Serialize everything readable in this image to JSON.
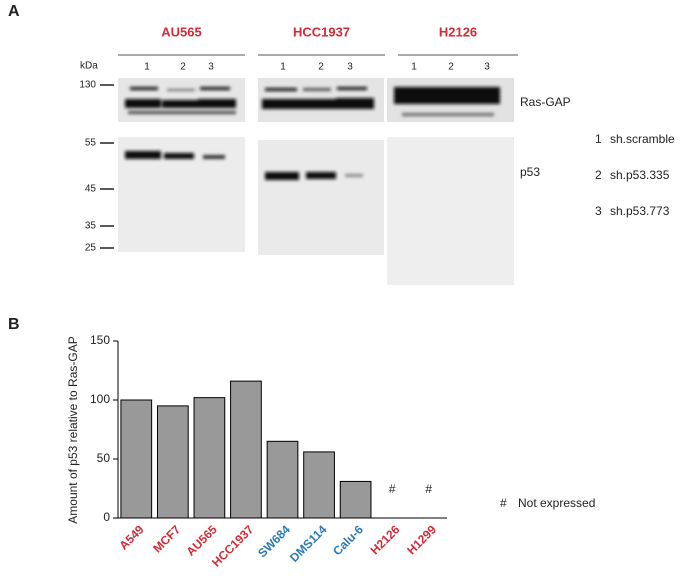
{
  "panel_a": {
    "label": "A",
    "kda": "kDa",
    "group_color": "#d62a35",
    "groups": [
      {
        "name": "AU565",
        "lanes": [
          "1",
          "2",
          "3"
        ]
      },
      {
        "name": "HCC1937",
        "lanes": [
          "1",
          "2",
          "3"
        ]
      },
      {
        "name": "H2126",
        "lanes": [
          "1",
          "2",
          "3"
        ]
      }
    ],
    "markers": [
      "130",
      "55",
      "45",
      "35",
      "25"
    ],
    "blots": [
      "Ras-GAP",
      "p53"
    ],
    "legend": [
      {
        "number": "1",
        "text": "sh.scramble"
      },
      {
        "number": "2",
        "text": "sh.p53.335"
      },
      {
        "number": "3",
        "text": "sh.p53.773"
      }
    ]
  },
  "chart_data": {
    "type": "bar",
    "panel_label": "B",
    "ylabel": "Amount of p53 relative to Ras-GAP",
    "categories": [
      "A549",
      "MCF7",
      "AU565",
      "HCC1937",
      "SW684",
      "DMS114",
      "Calu-6",
      "H2126",
      "H1299"
    ],
    "category_colors": [
      "#d62a35",
      "#d62a35",
      "#d62a35",
      "#d62a35",
      "#2a7ab8",
      "#2a7ab8",
      "#2a7ab8",
      "#d62a35",
      "#d62a35"
    ],
    "values": [
      100,
      95,
      102,
      116,
      65,
      56,
      31,
      null,
      null
    ],
    "value_labels": [
      null,
      null,
      null,
      null,
      null,
      null,
      null,
      "#",
      "#"
    ],
    "note": {
      "symbol": "#",
      "text": "Not expressed"
    },
    "color": "#999999",
    "ylim": [
      0,
      150
    ],
    "yticks": [
      0,
      50,
      100,
      150
    ]
  }
}
